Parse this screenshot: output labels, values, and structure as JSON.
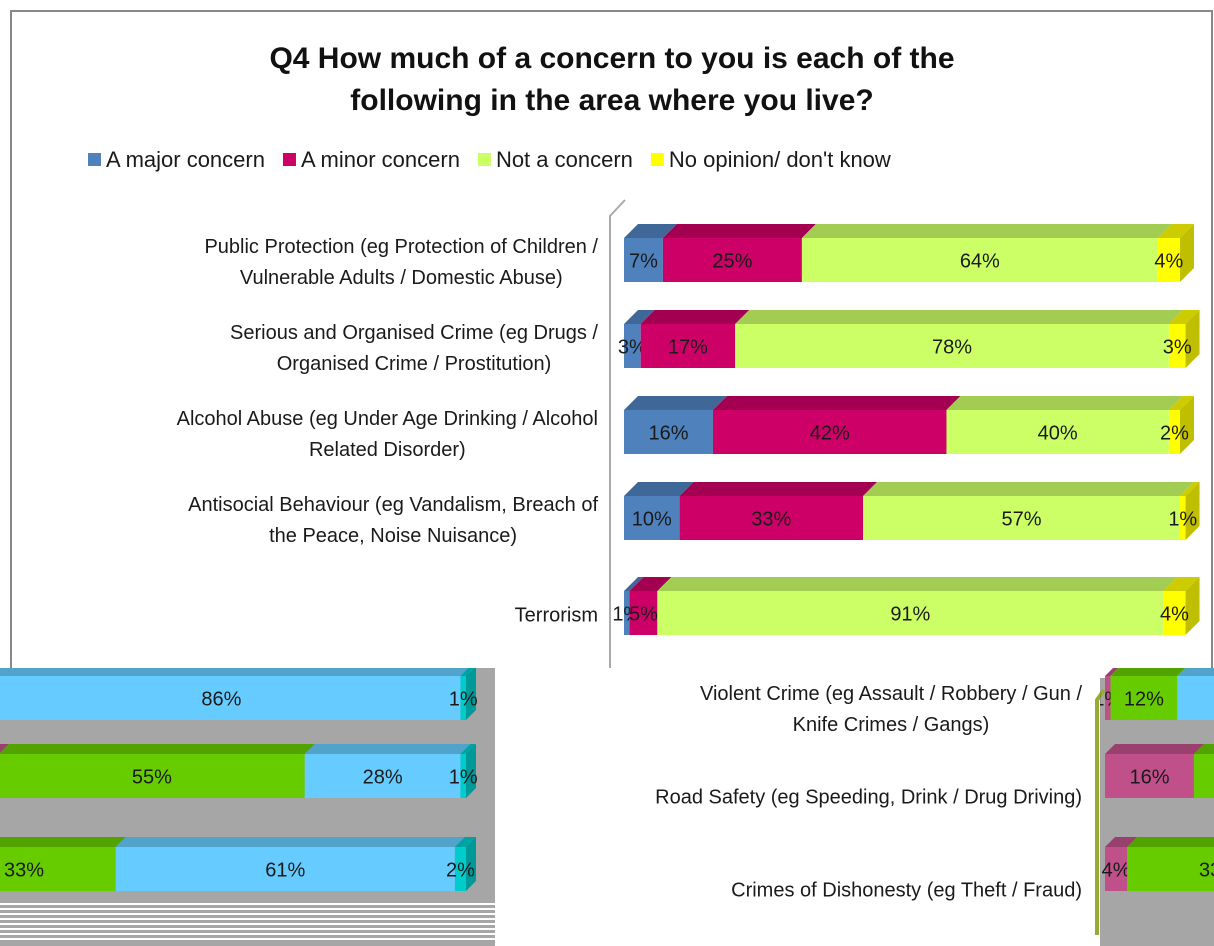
{
  "chart_data": [
    {
      "type": "bar",
      "stacked": true,
      "horizontal": true,
      "title": "Q4 How much of a concern to you is each of the\nfollowing in the area where you live?",
      "legend": "top",
      "categories": [
        "Public Protection (eg Protection of Children /\nVulnerable Adults / Domestic Abuse)",
        "Serious and Organised Crime (eg Drugs /\nOrganised Crime / Prostitution)",
        "Alcohol Abuse (eg Under Age Drinking / Alcohol\nRelated Disorder)",
        "Antisocial Behaviour (eg Vandalism, Breach of\nthe Peace, Noise Nuisance)",
        "Terrorism"
      ],
      "series": [
        {
          "name": "A major concern",
          "color": "#4f81bd",
          "values": [
            7,
            3,
            16,
            10,
            1
          ],
          "value_labels": [
            "7%",
            "3%",
            "16%",
            "10%",
            "1%"
          ]
        },
        {
          "name": "A minor concern",
          "color": "#cc0066",
          "values": [
            25,
            17,
            42,
            33,
            5
          ],
          "value_labels": [
            "25%",
            "17%",
            "42%",
            "33%",
            "5%"
          ]
        },
        {
          "name": "Not a concern",
          "color": "#ccff66",
          "values": [
            64,
            78,
            40,
            57,
            91
          ],
          "value_labels": [
            "64%",
            "78%",
            "40%",
            "57%",
            "91%"
          ]
        },
        {
          "name": "No opinion/ don't know",
          "color": "#ffff00",
          "values": [
            4,
            3,
            2,
            1,
            4
          ],
          "value_labels": [
            "4%",
            "3%",
            "2%",
            "1%",
            "4%"
          ]
        }
      ]
    },
    {
      "type": "bar",
      "stacked": true,
      "horizontal": true,
      "categories": [
        "Violent Crime (eg Assault / Robbery / Gun /\nKnife Crimes / Gangs)",
        "Road Safety (eg Speeding, Drink / Drug Driving)",
        "Crimes of Dishonesty (eg Theft / Fraud)"
      ],
      "series": [
        {
          "color": "#c0508a",
          "values": [
            1,
            16,
            4
          ],
          "value_labels": [
            "1%",
            "16%",
            "4%"
          ]
        },
        {
          "color": "#66cc00",
          "values": [
            12,
            55,
            33
          ],
          "value_labels": [
            "12%",
            "55%",
            "33%"
          ]
        },
        {
          "color": "#66ccff",
          "values": [
            86,
            28,
            61
          ],
          "value_labels": [
            "86%",
            "28%",
            "61%"
          ]
        },
        {
          "color": "#00cccc",
          "values": [
            1,
            1,
            2
          ],
          "value_labels": [
            "1%",
            "1%",
            "2%"
          ]
        }
      ]
    }
  ]
}
